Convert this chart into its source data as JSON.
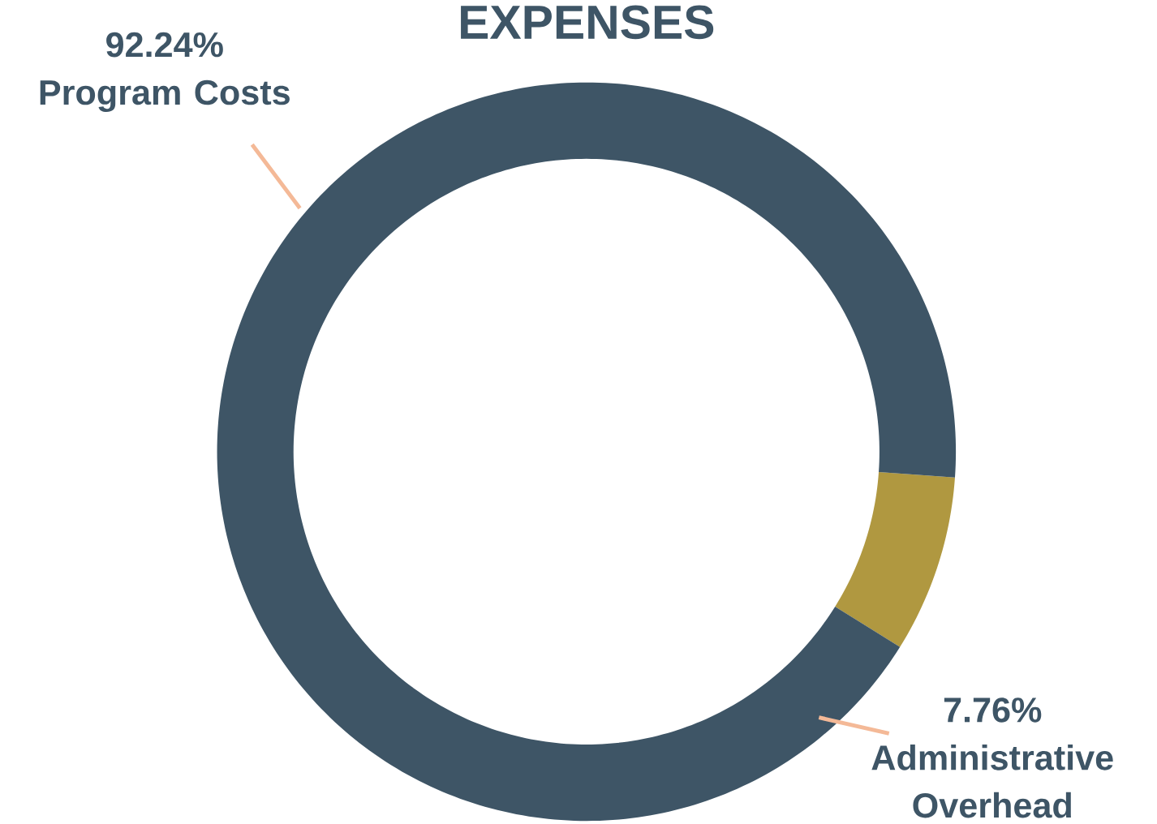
{
  "chart_data": {
    "type": "donut",
    "title": "EXPENSES",
    "categories": [
      "Program Costs",
      "Administrative Overhead"
    ],
    "values": [
      92.24,
      7.76
    ],
    "colors": [
      "#3e5566",
      "#b09840"
    ],
    "value_labels": [
      "92.24%",
      "7.76%"
    ]
  }
}
